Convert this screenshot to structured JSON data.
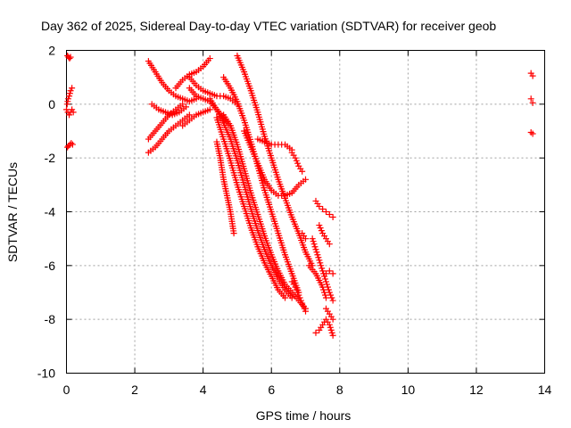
{
  "chart_data": {
    "type": "scatter",
    "title": "Day 362 of 2025, Sidereal Day-to-day VTEC variation (SDTVAR) for receiver geob",
    "xlabel": "GPS time / hours",
    "ylabel": "SDTVAR / TECUs",
    "xlim": [
      0,
      14
    ],
    "ylim": [
      -10,
      2
    ],
    "xticks": [
      0,
      2,
      4,
      6,
      8,
      10,
      12,
      14
    ],
    "yticks": [
      -10,
      -8,
      -6,
      -4,
      -2,
      0,
      2
    ],
    "x_tick_labels": [
      "0",
      "2",
      "4",
      "6",
      "8",
      "10",
      "12",
      "14"
    ],
    "y_tick_labels": [
      "-10",
      "-8",
      "-6",
      "-4",
      "-2",
      "0",
      "2"
    ],
    "grid": true,
    "marker": "+",
    "series_color": "#ff0000",
    "tracks": [
      {
        "x": [
          0.03,
          0.06,
          0.09,
          0.12
        ],
        "y": [
          1.8,
          1.75,
          1.7,
          1.75
        ]
      },
      {
        "x": [
          0.0,
          0.04,
          0.08,
          0.12,
          0.16,
          0.2
        ],
        "y": [
          -0.2,
          -0.3,
          -0.4,
          -0.3,
          -0.2,
          -0.3
        ]
      },
      {
        "x": [
          0.03,
          0.06,
          0.1,
          0.14,
          0.18
        ],
        "y": [
          -1.6,
          -1.55,
          -1.5,
          -1.45,
          -1.5
        ]
      },
      {
        "x": [
          0.08,
          0.12,
          0.16
        ],
        "y": [
          0.3,
          0.5,
          0.6
        ]
      },
      {
        "x": [
          0.02,
          0.05
        ],
        "y": [
          0.0,
          0.2
        ]
      },
      {
        "x": [
          2.4,
          2.6,
          2.8,
          3.0,
          3.2,
          3.4,
          3.6,
          3.8
        ],
        "y": [
          1.6,
          1.2,
          0.8,
          0.5,
          0.3,
          0.2,
          0.1,
          0.2
        ]
      },
      {
        "x": [
          2.4,
          2.6,
          2.8,
          3.0,
          3.2,
          3.4
        ],
        "y": [
          -1.3,
          -1.0,
          -0.7,
          -0.4,
          -0.2,
          0.0
        ]
      },
      {
        "x": [
          2.4,
          2.6,
          2.8,
          3.0,
          3.2,
          3.4,
          3.6
        ],
        "y": [
          -1.8,
          -1.6,
          -1.3,
          -1.0,
          -0.8,
          -0.6,
          -0.4
        ]
      },
      {
        "x": [
          2.5,
          2.7,
          2.9,
          3.1,
          3.3,
          3.5
        ],
        "y": [
          0.0,
          -0.2,
          -0.3,
          -0.4,
          -0.3,
          -0.1
        ]
      },
      {
        "x": [
          3.2,
          3.4,
          3.6,
          3.8,
          4.0,
          4.2
        ],
        "y": [
          0.6,
          0.9,
          1.1,
          1.2,
          1.4,
          1.7
        ]
      },
      {
        "x": [
          3.6,
          3.8,
          4.0,
          4.2,
          4.4,
          4.6,
          4.8,
          5.0
        ],
        "y": [
          1.0,
          0.7,
          0.5,
          0.4,
          0.3,
          0.3,
          0.2,
          0.0
        ]
      },
      {
        "x": [
          3.6,
          3.8,
          4.0,
          4.2,
          4.4,
          4.6,
          4.8
        ],
        "y": [
          0.6,
          0.3,
          0.2,
          0.1,
          -0.2,
          -0.5,
          -0.8
        ]
      },
      {
        "x": [
          3.4,
          3.6,
          3.8,
          4.0,
          4.2
        ],
        "y": [
          -0.8,
          -0.6,
          -0.4,
          -0.3,
          -0.2
        ]
      },
      {
        "x": [
          4.6,
          4.8,
          5.0,
          5.2,
          5.4,
          5.6,
          5.8,
          6.0,
          6.2,
          6.4,
          6.6,
          6.8,
          7.0
        ],
        "y": [
          -0.4,
          -0.8,
          -1.5,
          -2.4,
          -3.3,
          -4.1,
          -4.9,
          -5.6,
          -6.2,
          -6.7,
          -7.0,
          -7.3,
          -7.6
        ]
      },
      {
        "x": [
          4.6,
          4.8,
          5.0,
          5.2,
          5.4,
          5.6,
          5.8,
          6.0,
          6.2,
          6.4,
          6.6,
          6.8
        ],
        "y": [
          1.0,
          0.6,
          0.1,
          -0.6,
          -1.4,
          -2.3,
          -3.2,
          -4.0,
          -4.8,
          -5.6,
          -6.3,
          -7.0
        ]
      },
      {
        "x": [
          4.2,
          4.4,
          4.6,
          4.8,
          5.0,
          5.2,
          5.4,
          5.6,
          5.8,
          6.0,
          6.2,
          6.4,
          6.6
        ],
        "y": [
          0.2,
          -0.2,
          -0.7,
          -1.3,
          -2.1,
          -3.0,
          -3.9,
          -4.7,
          -5.4,
          -6.0,
          -6.5,
          -6.9,
          -7.2
        ]
      },
      {
        "x": [
          4.4,
          4.6,
          4.8,
          5.0,
          5.2,
          5.4,
          5.6,
          5.8,
          6.0,
          6.2,
          6.4
        ],
        "y": [
          -0.5,
          -1.3,
          -2.1,
          -3.0,
          -3.8,
          -4.6,
          -5.3,
          -5.9,
          -6.4,
          -6.9,
          -7.2
        ]
      },
      {
        "x": [
          4.4,
          4.5,
          4.6,
          4.7,
          4.8,
          4.9
        ],
        "y": [
          -1.4,
          -2.0,
          -2.8,
          -3.4,
          -4.0,
          -4.8
        ]
      },
      {
        "x": [
          5.0,
          5.2,
          5.4,
          5.6,
          5.8,
          6.0,
          6.2,
          6.4,
          6.6,
          6.8,
          7.0,
          7.2
        ],
        "y": [
          1.8,
          1.2,
          0.5,
          -0.3,
          -1.2,
          -2.0,
          -2.8,
          -3.5,
          -4.2,
          -4.8,
          -5.5,
          -6.0
        ]
      },
      {
        "x": [
          5.2,
          5.4,
          5.6,
          5.8,
          6.0,
          6.2,
          6.4,
          6.6,
          6.8,
          7.0
        ],
        "y": [
          -1.0,
          -1.6,
          -2.2,
          -2.8,
          -3.2,
          -3.4,
          -3.4,
          -3.3,
          -3.0,
          -2.8
        ]
      },
      {
        "x": [
          5.6,
          5.8,
          6.0,
          6.2,
          6.4,
          6.6
        ],
        "y": [
          -1.3,
          -1.4,
          -1.5,
          -1.5,
          -1.5,
          -1.7
        ]
      },
      {
        "x": [
          6.6,
          6.7,
          6.8,
          6.9
        ],
        "y": [
          -1.8,
          -2.0,
          -2.3,
          -2.5
        ]
      },
      {
        "x": [
          6.6,
          6.7,
          6.8,
          6.9,
          7.0
        ],
        "y": [
          -6.6,
          -6.8,
          -7.1,
          -7.4,
          -7.7
        ]
      },
      {
        "x": [
          6.9,
          7.0
        ],
        "y": [
          -4.8,
          -5.0
        ]
      },
      {
        "x": [
          7.3,
          7.4,
          7.5,
          7.6,
          7.7,
          7.8
        ],
        "y": [
          -3.6,
          -3.8,
          -3.9,
          -4.0,
          -4.1,
          -4.2
        ]
      },
      {
        "x": [
          7.4,
          7.5,
          7.6,
          7.7
        ],
        "y": [
          -4.5,
          -4.8,
          -5.0,
          -5.2
        ]
      },
      {
        "x": [
          7.2,
          7.3,
          7.4,
          7.5,
          7.6,
          7.7,
          7.8
        ],
        "y": [
          -5.0,
          -5.4,
          -5.8,
          -6.2,
          -6.6,
          -7.0,
          -7.3
        ]
      },
      {
        "x": [
          7.6,
          7.7,
          7.8
        ],
        "y": [
          -6.3,
          -6.2,
          -6.3
        ]
      },
      {
        "x": [
          7.3,
          7.4,
          7.5,
          7.6,
          7.7,
          7.8
        ],
        "y": [
          -8.5,
          -8.4,
          -8.2,
          -8.0,
          -8.2,
          -8.6
        ]
      },
      {
        "x": [
          7.6,
          7.7,
          7.8
        ],
        "y": [
          -7.6,
          -7.8,
          -8.0
        ]
      },
      {
        "x": [
          7.1,
          7.3,
          7.5,
          7.6
        ],
        "y": [
          -6.0,
          -6.3,
          -6.8,
          -7.2
        ]
      },
      {
        "x": [
          13.6,
          13.65
        ],
        "y": [
          1.15,
          1.05
        ]
      },
      {
        "x": [
          13.6,
          13.65
        ],
        "y": [
          0.2,
          0.05
        ]
      },
      {
        "x": [
          13.6,
          13.65
        ],
        "y": [
          -1.05,
          -1.1
        ]
      }
    ]
  }
}
